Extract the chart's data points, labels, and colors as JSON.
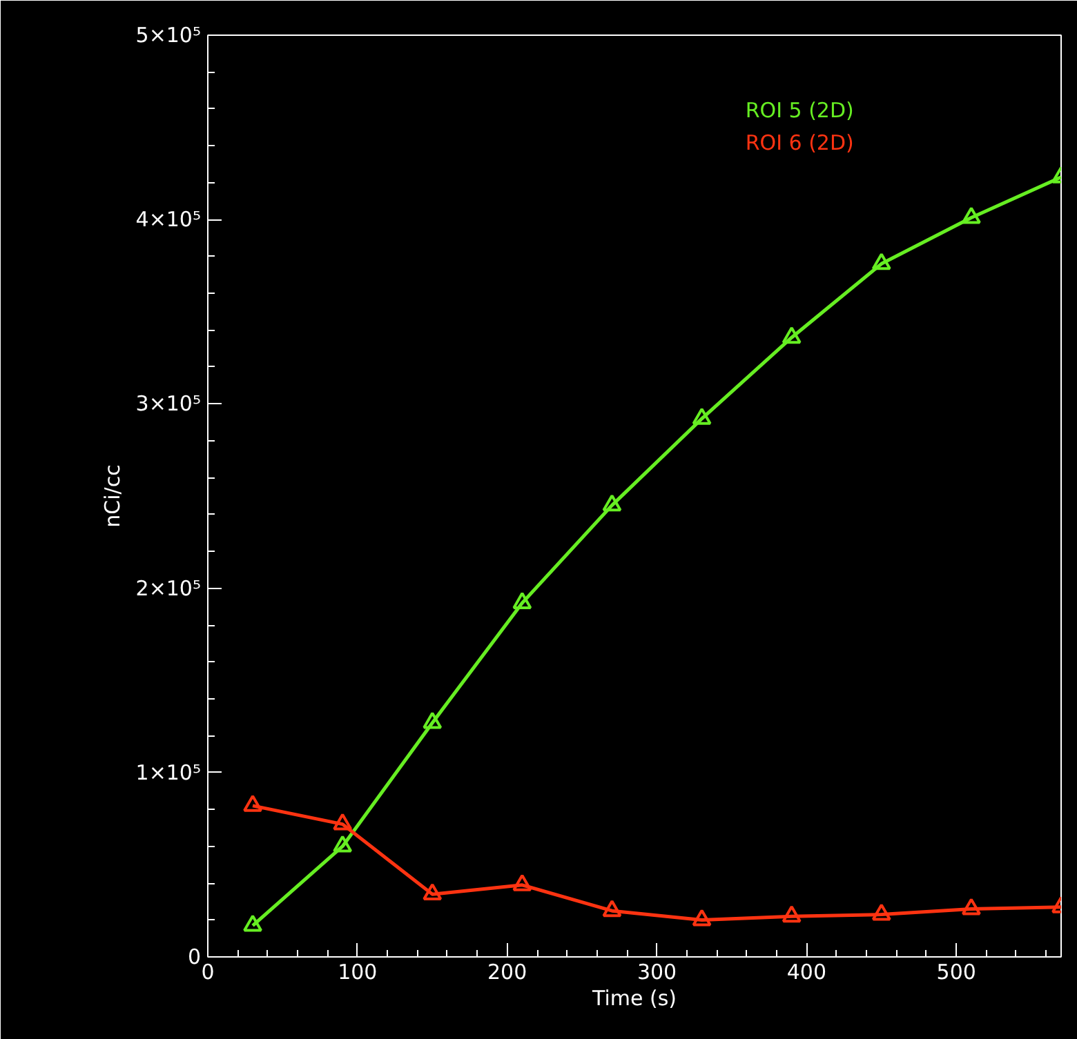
{
  "chart_data": {
    "type": "line",
    "xlabel": "Time (s)",
    "ylabel": "nCi/cc",
    "x": [
      30,
      90,
      150,
      210,
      270,
      330,
      390,
      450,
      510,
      570
    ],
    "series": [
      {
        "name": "ROI 5 (2D)",
        "color": "#66ee22",
        "values": [
          17000,
          60000,
          127000,
          192000,
          245000,
          292000,
          336000,
          376000,
          401000,
          423000
        ]
      },
      {
        "name": "ROI 6 (2D)",
        "color": "#ff3311",
        "values": [
          82000,
          72000,
          34000,
          39000,
          25000,
          20000,
          22000,
          23000,
          26000,
          27000
        ]
      }
    ],
    "xlim": [
      0,
      570
    ],
    "ylim": [
      0,
      500000
    ],
    "xticks": [
      0,
      100,
      200,
      300,
      400,
      500
    ],
    "yticks": [
      0,
      {
        "value": 100000,
        "label": "1×10⁵"
      },
      {
        "value": 200000,
        "label": "2×10⁵"
      },
      {
        "value": 300000,
        "label": "3×10⁵"
      },
      {
        "value": 400000,
        "label": "4×10⁵"
      },
      {
        "value": 500000,
        "label": "5×10⁵"
      }
    ],
    "marker": "triangle",
    "line_style": "solid",
    "grid": false,
    "legend": "top right"
  }
}
